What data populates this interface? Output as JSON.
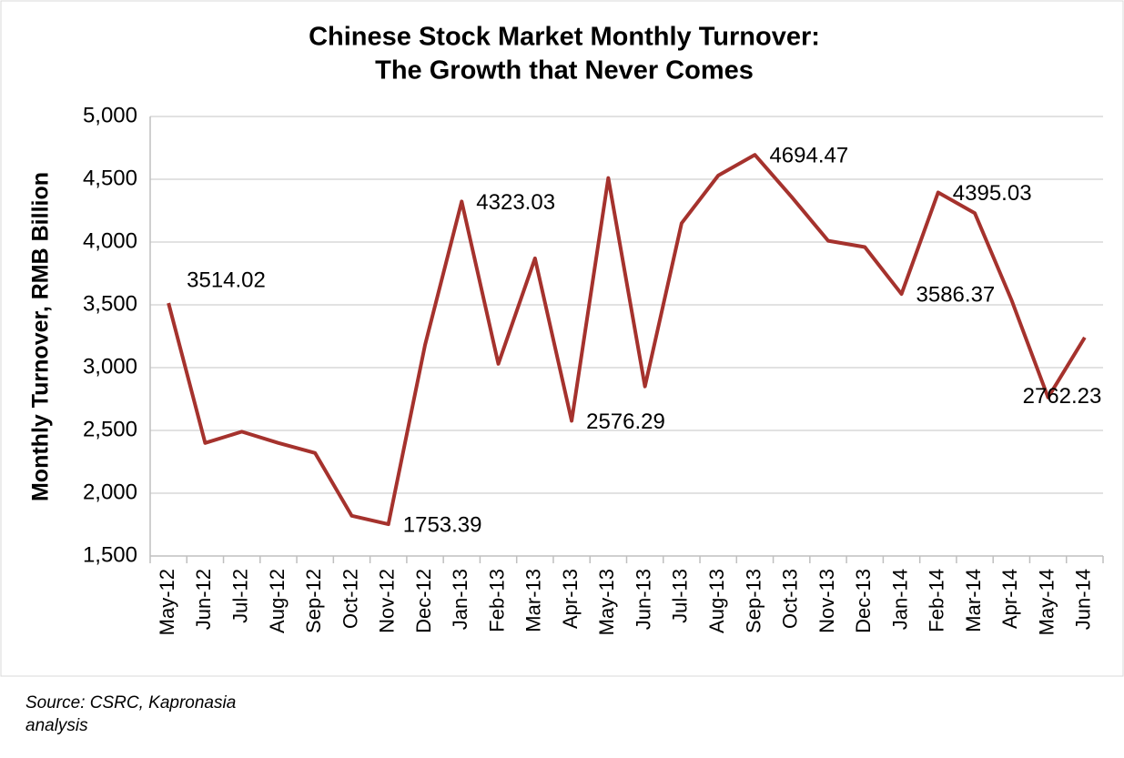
{
  "chart_data": {
    "type": "line",
    "title": "Chinese Stock Market Monthly Turnover:",
    "subtitle": "The Growth that Never Comes",
    "y_label": "Monthly Turnover, RMB Billion",
    "source": "Source: CSRC, Kapronasia analysis",
    "categories": [
      "May-12",
      "Jun-12",
      "Jul-12",
      "Aug-12",
      "Sep-12",
      "Oct-12",
      "Nov-12",
      "Dec-12",
      "Jan-13",
      "Feb-13",
      "Mar-13",
      "Apr-13",
      "May-13",
      "Jun-13",
      "Jul-13",
      "Aug-13",
      "Sep-13",
      "Oct-13",
      "Nov-13",
      "Dec-13",
      "Jan-14",
      "Feb-14",
      "Mar-14",
      "Apr-14",
      "May-14",
      "Jun-14"
    ],
    "series": [
      {
        "name": "Monthly Turnover",
        "color": "#a5322d",
        "values": [
          3514.02,
          2400,
          2490,
          2400,
          2320,
          1820,
          1753.39,
          3180,
          4323.03,
          3030,
          3870,
          2576.29,
          4510,
          2850,
          4150,
          4530,
          4694.47,
          4360,
          4010,
          3960,
          3586.37,
          4395.03,
          4230,
          3540,
          2762.23,
          3240
        ],
        "value_labels": [
          "3514.02",
          null,
          null,
          null,
          null,
          null,
          "1753.39",
          null,
          "4323.03",
          null,
          null,
          "2576.29",
          null,
          null,
          null,
          null,
          "4694.47",
          null,
          null,
          null,
          "3586.37",
          "4395.03",
          null,
          null,
          "2762.23",
          null
        ]
      }
    ],
    "ylim": [
      1500,
      5000
    ],
    "yticks": [
      {
        "value": 1500,
        "label": "1,500"
      },
      {
        "value": 2000,
        "label": "2,000"
      },
      {
        "value": 2500,
        "label": "2,500"
      },
      {
        "value": 3000,
        "label": "3,000"
      },
      {
        "value": 3500,
        "label": "3,500"
      },
      {
        "value": 4000,
        "label": "4,000"
      },
      {
        "value": 4500,
        "label": "4,500"
      },
      {
        "value": 5000,
        "label": "5,000"
      }
    ],
    "grid": true
  }
}
